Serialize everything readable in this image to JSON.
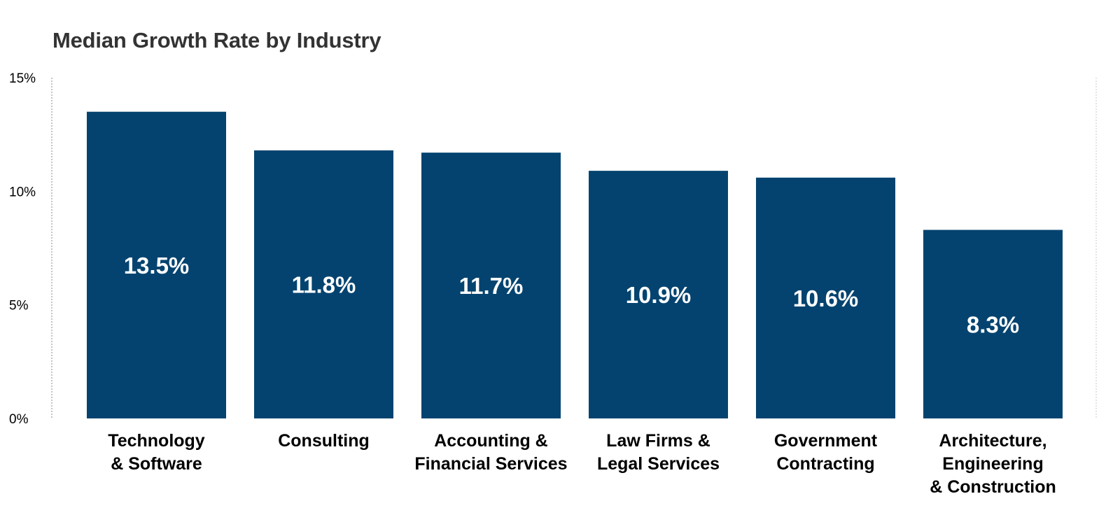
{
  "chart_data": {
    "type": "bar",
    "title": "Median Growth Rate by Industry",
    "xlabel": "",
    "ylabel": "",
    "ylim": [
      0,
      15
    ],
    "yticks": [
      0,
      5,
      10,
      15
    ],
    "ytick_labels": [
      "0%",
      "5%",
      "10%",
      "15%"
    ],
    "grid": false,
    "categories": [
      [
        "Technology",
        "& Software"
      ],
      [
        "Consulting"
      ],
      [
        "Accounting &",
        "Financial Services"
      ],
      [
        "Law Firms &",
        "Legal Services"
      ],
      [
        "Government",
        "Contracting"
      ],
      [
        "Architecture,",
        "Engineering",
        "& Construction"
      ]
    ],
    "values": [
      13.5,
      11.8,
      11.7,
      10.9,
      10.6,
      8.3
    ],
    "value_labels": [
      "13.5%",
      "11.8%",
      "11.7%",
      "10.9%",
      "10.6%",
      "8.3%"
    ],
    "bar_color": "#04436F"
  }
}
